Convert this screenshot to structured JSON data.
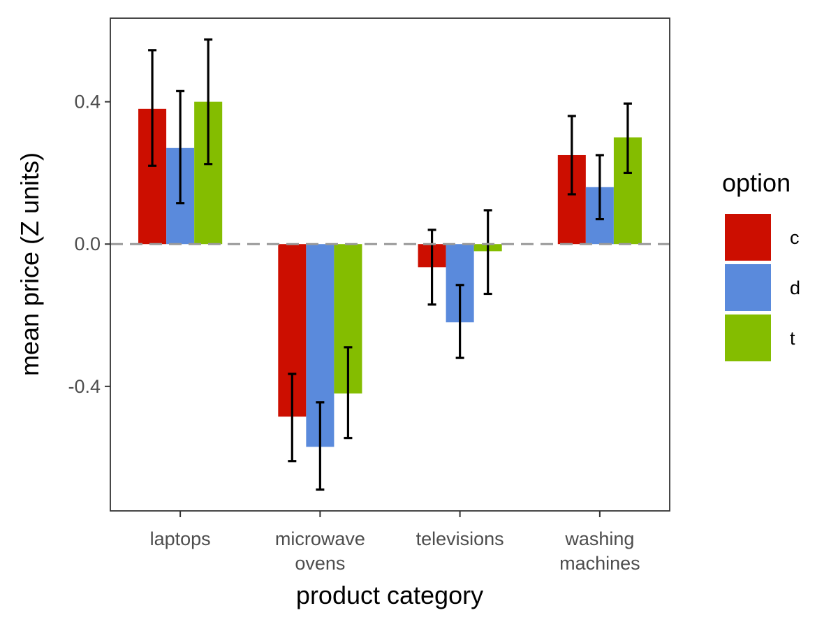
{
  "chart_data": {
    "type": "bar",
    "title": "",
    "xlabel": "product category",
    "ylabel": "mean price (Z units)",
    "categories": [
      [
        "laptops"
      ],
      [
        "microwave",
        "ovens"
      ],
      [
        "televisions"
      ],
      [
        "washing",
        "machines"
      ]
    ],
    "yticks": [
      -0.4,
      0.0,
      0.4
    ],
    "ytick_labels": [
      "-0.4",
      "0.0",
      "0.4"
    ],
    "ylim": [
      -0.75,
      0.635
    ],
    "grid": false,
    "reference_line": {
      "y": 0.0,
      "style": "dashed",
      "color": "#999999"
    },
    "legend": {
      "title": "option",
      "position": "right"
    },
    "series": [
      {
        "name": "c",
        "color": "#CC0E00",
        "values": [
          0.38,
          -0.485,
          -0.065,
          0.25
        ],
        "err_low": [
          0.22,
          -0.61,
          -0.17,
          0.14
        ],
        "err_high": [
          0.545,
          -0.365,
          0.04,
          0.36
        ]
      },
      {
        "name": "d",
        "color": "#5A8ADC",
        "values": [
          0.27,
          -0.57,
          -0.22,
          0.16
        ],
        "err_low": [
          0.115,
          -0.69,
          -0.32,
          0.07
        ],
        "err_high": [
          0.43,
          -0.445,
          -0.115,
          0.25
        ]
      },
      {
        "name": "t",
        "color": "#84BD00",
        "values": [
          0.4,
          -0.42,
          -0.02,
          0.3
        ],
        "err_low": [
          0.225,
          -0.545,
          -0.14,
          0.2
        ],
        "err_high": [
          0.575,
          -0.29,
          0.095,
          0.395
        ]
      }
    ]
  }
}
